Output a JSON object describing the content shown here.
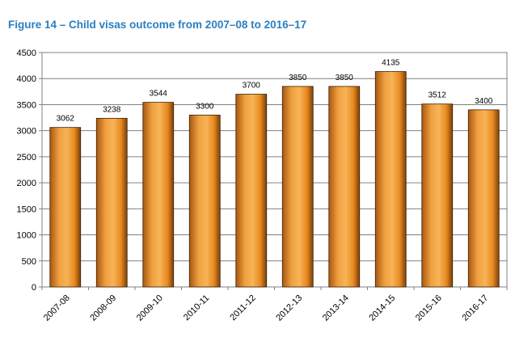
{
  "title": "Figure 14 – Child visas outcome from 2007–08 to 2016–17",
  "colors": {
    "title": "#2a7fc0",
    "bar_light": "#f5a74a",
    "bar_mid": "#e88920",
    "bar_dark": "#8a4a0c",
    "grid": "#808080"
  },
  "chart_data": {
    "type": "bar",
    "title": "Figure 14 – Child visas outcome from 2007–08 to 2016–17",
    "categories": [
      "2007-08",
      "2008-09",
      "2009-10",
      "2010-11",
      "2011-12",
      "2012-13",
      "2013-14",
      "2014-15",
      "2015-16",
      "2016-17"
    ],
    "values": [
      3062,
      3238,
      3544,
      3300,
      3700,
      3850,
      3850,
      4135,
      3512,
      3400
    ],
    "data_labels": [
      "3062",
      "3238",
      "3544",
      "3300",
      "3700",
      "3850",
      "3850",
      "4135",
      "3512",
      "3400"
    ],
    "y_ticks": [
      "0",
      "500",
      "1000",
      "1500",
      "2000",
      "2500",
      "3000",
      "3500",
      "4000",
      "4500"
    ],
    "ylim": [
      0,
      4500
    ],
    "xlabel": "",
    "ylabel": "",
    "grid": true,
    "legend": "none"
  }
}
